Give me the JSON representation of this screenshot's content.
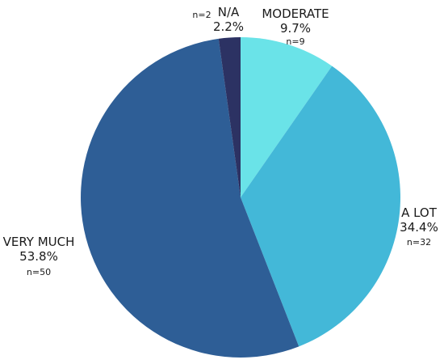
{
  "chart_data": {
    "type": "pie",
    "title": "",
    "slices": [
      {
        "label": "MODERATE",
        "value": 9.7,
        "pct_label": "9.7%",
        "n_label": "n=9",
        "color": "#6ae3e8"
      },
      {
        "label": "A LOT",
        "value": 34.4,
        "pct_label": "34.4%",
        "n_label": "n=32",
        "color": "#43b8d8"
      },
      {
        "label": "VERY MUCH",
        "value": 53.8,
        "pct_label": "53.8%",
        "n_label": "n=50",
        "color": "#2e5e96"
      },
      {
        "label": "N/A",
        "value": 2.2,
        "pct_label": "2.2%",
        "n_label": "n=2",
        "color": "#2c3263"
      }
    ],
    "start_angle": "12 o'clock",
    "direction": "clockwise",
    "legend": "none"
  }
}
